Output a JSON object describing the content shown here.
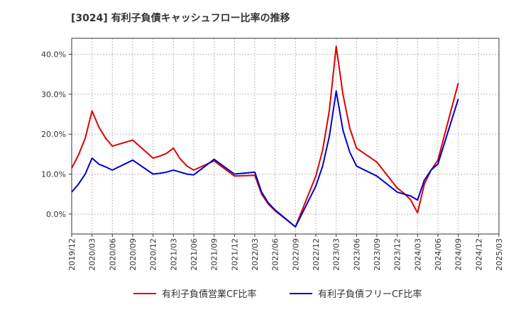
{
  "chart_data": {
    "type": "line",
    "title": "[3024]  有利子負債キャッシュフロー比率の推移",
    "xlabel": "",
    "ylabel": "",
    "ylim": [
      -5,
      44
    ],
    "yticks": [
      0,
      10,
      20,
      30,
      40
    ],
    "ytick_labels": [
      "0.0%",
      "10.0%",
      "20.0%",
      "30.0%",
      "40.0%"
    ],
    "x_ticks": [
      "2019/12",
      "2020/03",
      "2020/06",
      "2020/09",
      "2020/12",
      "2021/03",
      "2021/06",
      "2021/09",
      "2021/12",
      "2022/03",
      "2022/06",
      "2022/09",
      "2022/12",
      "2023/03",
      "2023/06",
      "2023/09",
      "2023/12",
      "2024/03",
      "2024/06",
      "2024/09",
      "2024/12",
      "2025/03"
    ],
    "x": [
      "2019/12",
      "2020/01",
      "2020/02",
      "2020/03",
      "2020/04",
      "2020/05",
      "2020/06",
      "2020/09",
      "2020/12",
      "2021/01",
      "2021/02",
      "2021/03",
      "2021/04",
      "2021/05",
      "2021/06",
      "2021/09",
      "2021/12",
      "2022/03",
      "2022/04",
      "2022/05",
      "2022/06",
      "2022/09",
      "2022/12",
      "2023/01",
      "2023/02",
      "2023/03",
      "2023/04",
      "2023/05",
      "2023/06",
      "2023/09",
      "2023/12",
      "2024/01",
      "2024/02",
      "2024/03",
      "2024/04",
      "2024/05",
      "2024/06",
      "2024/09"
    ],
    "grid": true,
    "legend_position": "bottom",
    "series": [
      {
        "name": "有利子負債営業CF比率",
        "color": "#dd0000",
        "values": [
          11.5,
          14.8,
          19.0,
          25.8,
          21.8,
          19.0,
          17.0,
          18.5,
          14.0,
          14.5,
          15.2,
          16.5,
          13.8,
          12.0,
          11.0,
          13.3,
          9.5,
          9.7,
          5.0,
          2.5,
          0.8,
          -3.2,
          9.5,
          16.0,
          26.0,
          42.0,
          30.0,
          21.5,
          16.5,
          13.0,
          6.5,
          5.2,
          3.5,
          0.3,
          7.5,
          11.0,
          13.5,
          32.8
        ]
      },
      {
        "name": "有利子負債フリーCF比率",
        "color": "#0000cc",
        "values": [
          5.5,
          7.5,
          10.0,
          14.0,
          12.5,
          11.8,
          11.0,
          13.5,
          10.0,
          10.2,
          10.5,
          11.0,
          10.5,
          10.0,
          9.8,
          13.7,
          10.0,
          10.5,
          5.5,
          2.8,
          1.0,
          -3.2,
          7.0,
          12.0,
          19.5,
          30.8,
          21.0,
          15.5,
          12.0,
          9.5,
          5.5,
          5.0,
          4.5,
          3.5,
          8.5,
          11.0,
          12.5,
          28.8
        ]
      }
    ]
  }
}
